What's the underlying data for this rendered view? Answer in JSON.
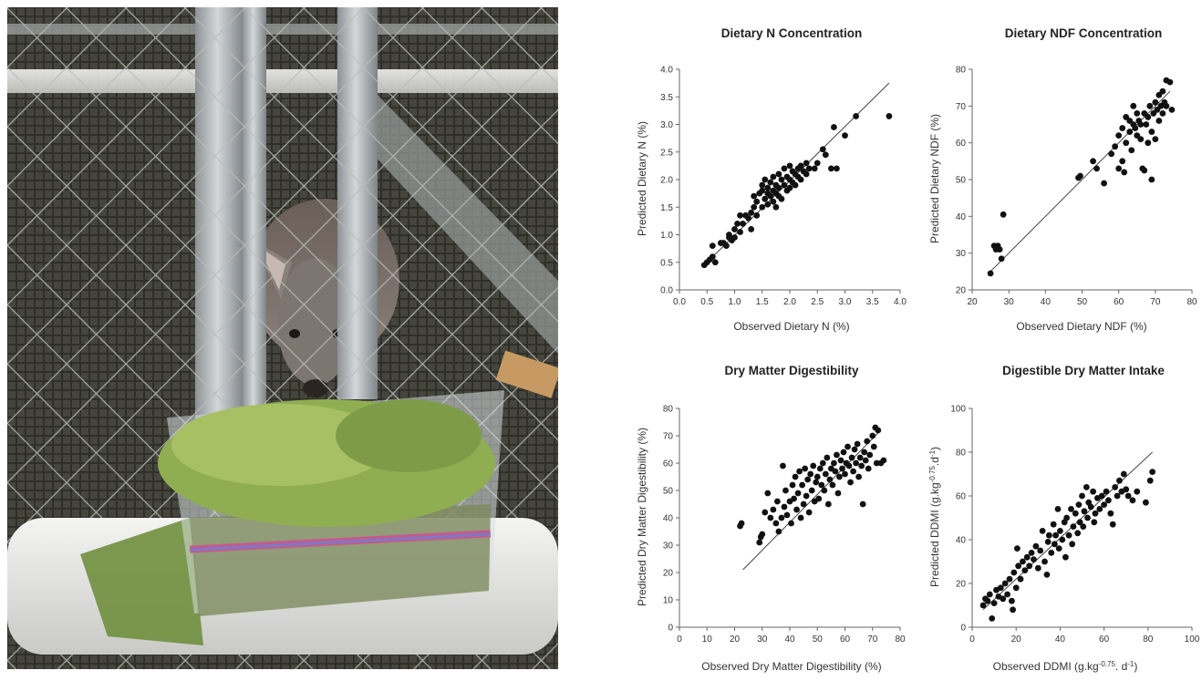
{
  "photo": {
    "alt": "wallaby-feeding-enclosure-photo"
  },
  "chart_data": [
    {
      "type": "scatter",
      "title": "Dietary N Concentration",
      "xlabel": "Observed Dietary N (%)",
      "ylabel": "Predicted Dietary N (%)",
      "xlim": [
        0.0,
        4.0
      ],
      "ylim": [
        0.0,
        4.0
      ],
      "xticks": [
        "0.0",
        "0.5",
        "1.0",
        "1.5",
        "2.0",
        "2.5",
        "3.0",
        "3.5",
        "4.0"
      ],
      "yticks": [
        "0.0",
        "0.5",
        "1.0",
        "1.5",
        "2.0",
        "2.5",
        "3.0",
        "3.5",
        "4.0"
      ],
      "xtick_values": [
        0,
        0.5,
        1,
        1.5,
        2,
        2.5,
        3,
        3.5,
        4
      ],
      "ytick_values": [
        0,
        0.5,
        1,
        1.5,
        2,
        2.5,
        3,
        3.5,
        4
      ],
      "line": [
        [
          0.45,
          0.45
        ],
        [
          3.8,
          3.75
        ]
      ],
      "points": [
        [
          0.45,
          0.45
        ],
        [
          0.5,
          0.5
        ],
        [
          0.55,
          0.55
        ],
        [
          0.6,
          0.6
        ],
        [
          0.65,
          0.5
        ],
        [
          0.6,
          0.8
        ],
        [
          0.75,
          0.85
        ],
        [
          0.8,
          0.85
        ],
        [
          0.85,
          0.8
        ],
        [
          0.9,
          0.95
        ],
        [
          0.9,
          1.0
        ],
        [
          0.95,
          0.9
        ],
        [
          1.0,
          1.1
        ],
        [
          1.0,
          0.95
        ],
        [
          1.05,
          1.2
        ],
        [
          1.1,
          1.05
        ],
        [
          1.1,
          1.35
        ],
        [
          1.15,
          1.2
        ],
        [
          1.2,
          1.35
        ],
        [
          1.25,
          1.3
        ],
        [
          1.3,
          1.1
        ],
        [
          1.3,
          1.4
        ],
        [
          1.35,
          1.5
        ],
        [
          1.35,
          1.7
        ],
        [
          1.4,
          1.6
        ],
        [
          1.4,
          1.35
        ],
        [
          1.45,
          1.75
        ],
        [
          1.5,
          1.5
        ],
        [
          1.5,
          1.8
        ],
        [
          1.5,
          1.9
        ],
        [
          1.55,
          1.65
        ],
        [
          1.55,
          2.0
        ],
        [
          1.6,
          1.75
        ],
        [
          1.6,
          1.55
        ],
        [
          1.6,
          1.85
        ],
        [
          1.65,
          1.7
        ],
        [
          1.65,
          1.95
        ],
        [
          1.7,
          1.6
        ],
        [
          1.7,
          1.8
        ],
        [
          1.7,
          2.05
        ],
        [
          1.75,
          1.75
        ],
        [
          1.75,
          1.5
        ],
        [
          1.75,
          1.9
        ],
        [
          1.8,
          1.7
        ],
        [
          1.8,
          2.1
        ],
        [
          1.8,
          1.85
        ],
        [
          1.85,
          2.0
        ],
        [
          1.85,
          1.65
        ],
        [
          1.9,
          1.9
        ],
        [
          1.9,
          2.2
        ],
        [
          1.95,
          1.8
        ],
        [
          1.95,
          2.05
        ],
        [
          2.0,
          2.0
        ],
        [
          2.0,
          1.85
        ],
        [
          2.0,
          2.25
        ],
        [
          2.05,
          2.15
        ],
        [
          2.05,
          1.95
        ],
        [
          2.1,
          2.1
        ],
        [
          2.1,
          1.9
        ],
        [
          2.15,
          2.2
        ],
        [
          2.15,
          2.05
        ],
        [
          2.2,
          2.25
        ],
        [
          2.2,
          2.0
        ],
        [
          2.25,
          2.15
        ],
        [
          2.3,
          2.3
        ],
        [
          2.3,
          2.1
        ],
        [
          2.35,
          2.2
        ],
        [
          2.45,
          2.2
        ],
        [
          2.5,
          2.3
        ],
        [
          2.6,
          2.55
        ],
        [
          2.65,
          2.45
        ],
        [
          2.75,
          2.2
        ],
        [
          2.8,
          2.95
        ],
        [
          2.85,
          2.2
        ],
        [
          3.0,
          2.8
        ],
        [
          3.2,
          3.15
        ],
        [
          3.8,
          3.15
        ]
      ]
    },
    {
      "type": "scatter",
      "title": "Dietary NDF Concentration",
      "xlabel": "Observed Dietary NDF (%)",
      "ylabel": "Predicted Dietary NDF (%)",
      "xlim": [
        20,
        80
      ],
      "ylim": [
        20,
        80
      ],
      "xticks": [
        "20",
        "30",
        "40",
        "50",
        "60",
        "70",
        "80"
      ],
      "yticks": [
        "20",
        "30",
        "40",
        "50",
        "60",
        "70",
        "80"
      ],
      "xtick_values": [
        20,
        30,
        40,
        50,
        60,
        70,
        80
      ],
      "ytick_values": [
        20,
        30,
        40,
        50,
        60,
        70,
        80
      ],
      "line": [
        [
          25,
          25
        ],
        [
          74,
          74
        ]
      ],
      "points": [
        [
          25,
          24.5
        ],
        [
          26,
          32
        ],
        [
          26.5,
          31
        ],
        [
          27,
          32
        ],
        [
          27.5,
          31
        ],
        [
          28,
          28.5
        ],
        [
          28.5,
          40.5
        ],
        [
          49,
          50.5
        ],
        [
          49.5,
          51
        ],
        [
          53,
          55
        ],
        [
          54,
          53
        ],
        [
          56,
          49
        ],
        [
          58,
          57
        ],
        [
          59,
          59
        ],
        [
          60,
          62
        ],
        [
          60,
          53
        ],
        [
          61,
          64
        ],
        [
          61,
          55
        ],
        [
          61.5,
          52
        ],
        [
          62,
          60
        ],
        [
          62,
          67
        ],
        [
          63,
          63
        ],
        [
          63,
          66
        ],
        [
          63.5,
          58
        ],
        [
          64,
          65
        ],
        [
          64,
          70
        ],
        [
          64.5,
          64
        ],
        [
          65,
          68
        ],
        [
          65,
          62
        ],
        [
          65.5,
          66
        ],
        [
          66,
          61
        ],
        [
          66,
          65
        ],
        [
          66.5,
          53
        ],
        [
          67,
          52.5
        ],
        [
          67,
          68
        ],
        [
          67.5,
          65
        ],
        [
          68,
          60
        ],
        [
          68,
          67
        ],
        [
          68.5,
          70
        ],
        [
          69,
          63
        ],
        [
          69,
          50
        ],
        [
          69.5,
          68
        ],
        [
          70,
          61
        ],
        [
          70,
          71
        ],
        [
          70.5,
          69
        ],
        [
          71,
          73
        ],
        [
          71,
          66
        ],
        [
          71.5,
          70
        ],
        [
          72,
          68
        ],
        [
          72,
          74
        ],
        [
          72.5,
          71
        ],
        [
          73,
          70
        ],
        [
          73,
          77
        ],
        [
          74,
          76.5
        ],
        [
          74.5,
          69
        ]
      ]
    },
    {
      "type": "scatter",
      "title": "Dry Matter Digestibility",
      "xlabel": "Observed Dry Matter Digestibility (%)",
      "ylabel": "Predicted Dry Matter Digestibility (%)",
      "xlim": [
        0,
        80
      ],
      "ylim": [
        0,
        80
      ],
      "xticks": [
        "0",
        "10",
        "20",
        "30",
        "40",
        "50",
        "60",
        "70",
        "80"
      ],
      "yticks": [
        "0",
        "10",
        "20",
        "30",
        "40",
        "50",
        "60",
        "70",
        "80"
      ],
      "xtick_values": [
        0,
        10,
        20,
        30,
        40,
        50,
        60,
        70,
        80
      ],
      "ytick_values": [
        0,
        10,
        20,
        30,
        40,
        50,
        60,
        70,
        80
      ],
      "line": [
        [
          23,
          21
        ],
        [
          73,
          72
        ]
      ],
      "points": [
        [
          22,
          37
        ],
        [
          22.5,
          38
        ],
        [
          29,
          31
        ],
        [
          29.5,
          33
        ],
        [
          30,
          34
        ],
        [
          31,
          42
        ],
        [
          32,
          49
        ],
        [
          33,
          40
        ],
        [
          34,
          43
        ],
        [
          35,
          38
        ],
        [
          35.5,
          46
        ],
        [
          36,
          35
        ],
        [
          37,
          40
        ],
        [
          37.5,
          59
        ],
        [
          38,
          44
        ],
        [
          38.5,
          50
        ],
        [
          39,
          41
        ],
        [
          40,
          46
        ],
        [
          40.5,
          38
        ],
        [
          41,
          52
        ],
        [
          41.5,
          47
        ],
        [
          42,
          55
        ],
        [
          42.5,
          43
        ],
        [
          43,
          49
        ],
        [
          43.5,
          57
        ],
        [
          44,
          40
        ],
        [
          44.5,
          52
        ],
        [
          45,
          45
        ],
        [
          45.5,
          58
        ],
        [
          46,
          48
        ],
        [
          46.5,
          54
        ],
        [
          47,
          42
        ],
        [
          47.5,
          56
        ],
        [
          48,
          50
        ],
        [
          48.5,
          59
        ],
        [
          49,
          46
        ],
        [
          49.5,
          53
        ],
        [
          50,
          55
        ],
        [
          50.5,
          47
        ],
        [
          51,
          58
        ],
        [
          51.5,
          52
        ],
        [
          52,
          60
        ],
        [
          52.5,
          50
        ],
        [
          53,
          56
        ],
        [
          53.5,
          62
        ],
        [
          54,
          45
        ],
        [
          54.5,
          54
        ],
        [
          55,
          58
        ],
        [
          55.5,
          52
        ],
        [
          56,
          60
        ],
        [
          56.5,
          57
        ],
        [
          57,
          63
        ],
        [
          57.5,
          49
        ],
        [
          58,
          55
        ],
        [
          58.5,
          61
        ],
        [
          59,
          58
        ],
        [
          59.5,
          64
        ],
        [
          60,
          56
        ],
        [
          60.5,
          60
        ],
        [
          61,
          66
        ],
        [
          61.5,
          59
        ],
        [
          62,
          53
        ],
        [
          62.5,
          62
        ],
        [
          63,
          57
        ],
        [
          63.5,
          65
        ],
        [
          64,
          60
        ],
        [
          64.5,
          67
        ],
        [
          65,
          55
        ],
        [
          65.5,
          62
        ],
        [
          66,
          59
        ],
        [
          66.5,
          45
        ],
        [
          67,
          64
        ],
        [
          67.5,
          61
        ],
        [
          68,
          68
        ],
        [
          68.5,
          58
        ],
        [
          69,
          63
        ],
        [
          70,
          70
        ],
        [
          70.5,
          66
        ],
        [
          71,
          73
        ],
        [
          71.5,
          60
        ],
        [
          72,
          72
        ],
        [
          73,
          60
        ],
        [
          74,
          61
        ]
      ]
    },
    {
      "type": "scatter",
      "title": "Digestible Dry Matter Intake",
      "xlabel": "Observed DDMI (g.kg-0.75. d-1)",
      "ylabel": "Predicted DDMI (g.kg-0.75.d-1)",
      "xlim": [
        0,
        100
      ],
      "ylim": [
        0,
        100
      ],
      "xticks": [
        "0",
        "20",
        "40",
        "60",
        "80",
        "100"
      ],
      "yticks": [
        "0",
        "20",
        "40",
        "60",
        "80",
        "100"
      ],
      "xtick_values": [
        0,
        20,
        40,
        60,
        80,
        100
      ],
      "ytick_values": [
        0,
        20,
        40,
        60,
        80,
        100
      ],
      "line": [
        [
          5,
          8
        ],
        [
          82,
          80
        ]
      ],
      "points": [
        [
          5,
          10
        ],
        [
          6,
          13
        ],
        [
          7,
          12
        ],
        [
          8,
          15
        ],
        [
          9,
          4
        ],
        [
          10,
          11
        ],
        [
          11,
          17
        ],
        [
          12,
          14
        ],
        [
          13,
          18
        ],
        [
          14,
          13
        ],
        [
          15,
          20
        ],
        [
          16,
          15
        ],
        [
          17,
          22
        ],
        [
          18,
          12
        ],
        [
          18.5,
          8
        ],
        [
          19,
          25
        ],
        [
          20,
          18
        ],
        [
          20.5,
          36
        ],
        [
          21,
          28
        ],
        [
          22,
          22
        ],
        [
          23,
          30
        ],
        [
          24,
          26
        ],
        [
          25,
          32
        ],
        [
          26,
          28
        ],
        [
          27,
          34
        ],
        [
          28,
          31
        ],
        [
          29,
          37
        ],
        [
          30,
          27
        ],
        [
          31,
          35
        ],
        [
          32,
          44
        ],
        [
          33,
          30
        ],
        [
          34,
          24
        ],
        [
          34.5,
          39
        ],
        [
          35,
          42
        ],
        [
          36,
          34
        ],
        [
          37,
          47
        ],
        [
          37.5,
          38
        ],
        [
          38,
          42
        ],
        [
          39,
          54
        ],
        [
          39.5,
          36
        ],
        [
          40,
          44
        ],
        [
          41,
          40
        ],
        [
          42,
          48
        ],
        [
          42.5,
          32
        ],
        [
          43,
          50
        ],
        [
          44,
          42
        ],
        [
          45,
          54
        ],
        [
          45.5,
          38
        ],
        [
          46,
          46
        ],
        [
          47,
          52
        ],
        [
          48,
          43
        ],
        [
          48.5,
          56
        ],
        [
          49,
          48
        ],
        [
          50,
          60
        ],
        [
          50.5,
          46
        ],
        [
          51,
          53
        ],
        [
          52,
          64
        ],
        [
          52.5,
          50
        ],
        [
          53,
          57
        ],
        [
          54,
          55
        ],
        [
          55,
          62
        ],
        [
          55.5,
          48
        ],
        [
          56,
          52
        ],
        [
          57,
          59
        ],
        [
          58,
          54
        ],
        [
          59,
          60
        ],
        [
          60,
          56
        ],
        [
          61,
          62
        ],
        [
          62,
          58
        ],
        [
          63,
          52
        ],
        [
          64,
          47
        ],
        [
          65,
          64
        ],
        [
          66,
          60
        ],
        [
          67,
          67
        ],
        [
          68,
          62
        ],
        [
          69,
          70
        ],
        [
          70,
          63
        ],
        [
          71,
          60
        ],
        [
          73,
          58
        ],
        [
          75,
          62
        ],
        [
          79,
          57
        ],
        [
          81,
          67
        ],
        [
          82,
          71
        ]
      ]
    }
  ]
}
